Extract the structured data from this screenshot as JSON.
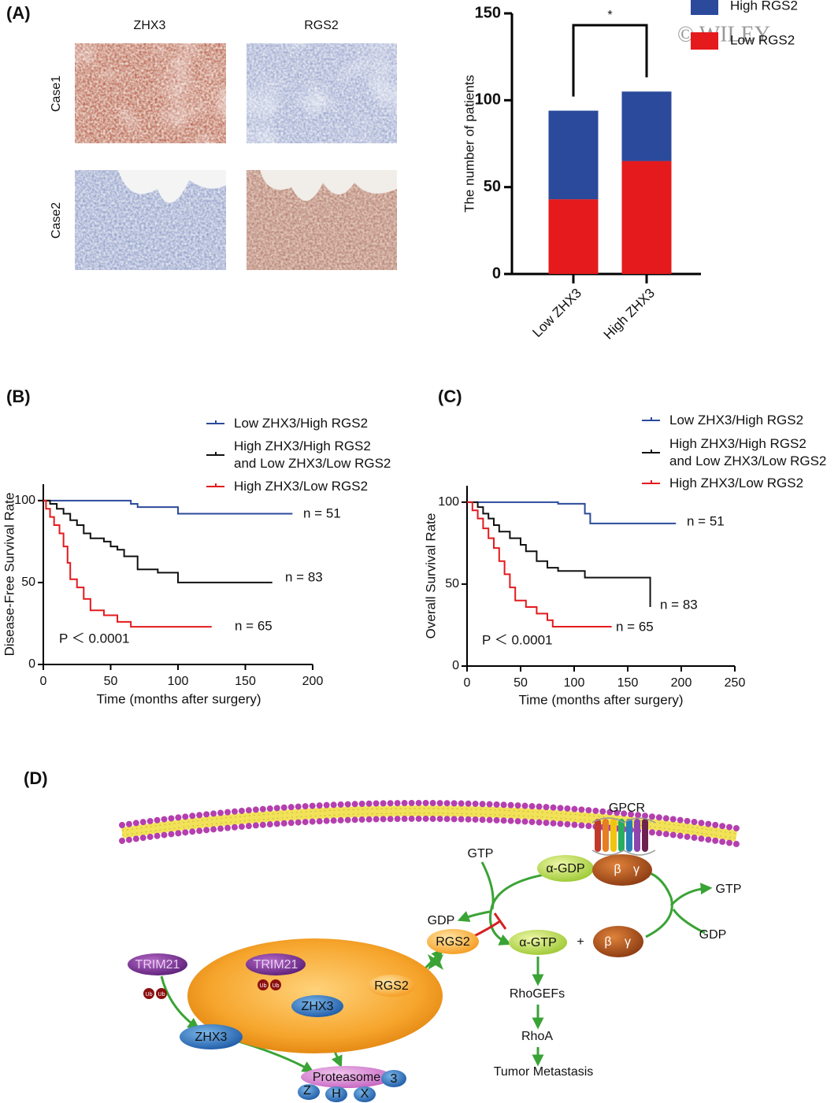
{
  "panel_labels": [
    "(A)",
    "(B)",
    "(C)",
    "(D)"
  ],
  "ihc": {
    "columns": [
      "ZHX3",
      "RGS2"
    ],
    "rows": [
      "Case1",
      "Case2"
    ]
  },
  "watermark": "© WILEY",
  "chart_data": [
    {
      "type": "bar",
      "stacked": true,
      "ylabel": "The number of patients",
      "categories": [
        "Low ZHX3",
        "High ZHX3"
      ],
      "series": [
        {
          "name": "Low RGS2",
          "color": "#e41a1c",
          "values": [
            43,
            65
          ]
        },
        {
          "name": "High RGS2",
          "color": "#2b4a9b",
          "values": [
            51,
            40
          ]
        }
      ],
      "ylim": [
        0,
        150
      ],
      "yticks": [
        0,
        50,
        100,
        150
      ],
      "annotation": "*"
    },
    {
      "type": "line",
      "step": true,
      "xlabel": "Time (months after surgery)",
      "ylabel": "Disease-Free Survival Rate",
      "xlim": [
        0,
        200
      ],
      "xticks": [
        0,
        50,
        100,
        150,
        200
      ],
      "ylim": [
        0,
        110
      ],
      "yticks": [
        0,
        50,
        100
      ],
      "annotation": "P ＜ 0.0001",
      "series": [
        {
          "name": "Low ZHX3/High RGS2",
          "color": "#2b4a9b",
          "annotation": "n = 51",
          "x": [
            0,
            65,
            70,
            100,
            185
          ],
          "values": [
            100,
            98,
            96,
            92,
            92
          ]
        },
        {
          "name": "High ZHX3/High RGS2\nand Low ZHX3/Low RGS2",
          "color": "#111111",
          "annotation": "n = 83",
          "x": [
            0,
            5,
            10,
            15,
            20,
            25,
            30,
            35,
            45,
            50,
            55,
            60,
            70,
            85,
            100,
            170
          ],
          "values": [
            100,
            98,
            95,
            92,
            88,
            85,
            80,
            77,
            75,
            72,
            70,
            66,
            58,
            56,
            50,
            50
          ]
        },
        {
          "name": "High ZHX3/Low RGS2",
          "color": "#e41a1c",
          "annotation": "n = 65",
          "x": [
            0,
            2,
            5,
            8,
            12,
            15,
            18,
            20,
            25,
            30,
            35,
            45,
            55,
            65,
            125
          ],
          "values": [
            100,
            95,
            90,
            85,
            80,
            72,
            62,
            52,
            47,
            40,
            33,
            30,
            26,
            23,
            23
          ]
        }
      ]
    },
    {
      "type": "line",
      "step": true,
      "xlabel": "Time (months after surgery)",
      "ylabel": "Overall Survival Rate",
      "xlim": [
        0,
        250
      ],
      "xticks": [
        0,
        50,
        100,
        150,
        200,
        250
      ],
      "ylim": [
        0,
        110
      ],
      "yticks": [
        0,
        50,
        100
      ],
      "annotation": "P ＜ 0.0001",
      "series": [
        {
          "name": "Low ZHX3/High RGS2",
          "color": "#2b4a9b",
          "annotation": "n = 51",
          "x": [
            0,
            85,
            110,
            115,
            195
          ],
          "values": [
            100,
            99,
            93,
            87,
            87
          ]
        },
        {
          "name": "High ZHX3/High RGS2\nand Low ZHX3/Low RGS2",
          "color": "#111111",
          "annotation": "n = 83",
          "x": [
            0,
            10,
            15,
            20,
            25,
            30,
            40,
            50,
            55,
            65,
            75,
            85,
            110,
            170,
            171
          ],
          "values": [
            100,
            97,
            93,
            90,
            86,
            82,
            78,
            74,
            70,
            64,
            60,
            58,
            54,
            54,
            36
          ]
        },
        {
          "name": "High ZHX3/Low RGS2",
          "color": "#e41a1c",
          "annotation": "n = 65",
          "x": [
            0,
            5,
            10,
            15,
            20,
            25,
            30,
            35,
            40,
            45,
            55,
            65,
            75,
            80,
            135
          ],
          "values": [
            100,
            95,
            90,
            84,
            78,
            72,
            64,
            56,
            48,
            40,
            36,
            32,
            28,
            24,
            24
          ]
        }
      ]
    }
  ],
  "diagram": {
    "labels": [
      "GPCR",
      "GTP",
      "α-GDP",
      "β",
      "γ",
      "GDP",
      "RGS2",
      "α-GTP",
      "+",
      "β",
      "γ",
      "GTP",
      "GDP",
      "TRIM21",
      "TRIM21",
      "Ub",
      "Ub",
      "Ub",
      "Ub",
      "ZHX3",
      "RGS2",
      "ZHX3",
      "Proteasome",
      "3",
      "Z",
      "H",
      "X",
      "RhoGEFs",
      "RhoA",
      "Tumor Metastasis"
    ]
  }
}
